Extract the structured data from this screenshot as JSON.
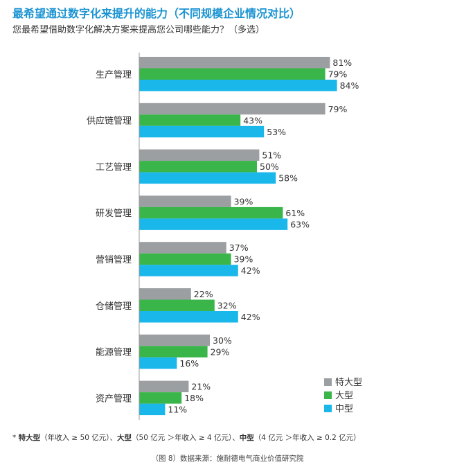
{
  "title": "最希望通过数字化来提升的能力（不同规模企业情况对比）",
  "subtitle": "您最希望借助数字化解决方案来提高您公司哪些能力？（多选）",
  "footnote": {
    "marker": "* ",
    "t1_name": "特大型",
    "t1_def": "（年收入 ≥ 50 亿元）、",
    "t2_name": "大型",
    "t2_def": "（50 亿元 ＞年收入 ≥ 4 亿元）、",
    "t3_name": "中型",
    "t3_def": "（4 亿元 ＞年收入 ≥ 0.2 亿元）"
  },
  "source": "（图 8）数据来源：施耐德电气商业价值研究院",
  "chart_data": {
    "type": "bar",
    "orientation": "horizontal",
    "value_suffix": "%",
    "categories": [
      "生产管理",
      "供应链管理",
      "工艺管理",
      "研发管理",
      "营销管理",
      "仓储管理",
      "能源管理",
      "资产管理"
    ],
    "series": [
      {
        "name": "特大型",
        "color": "#9b9fa2",
        "values": [
          81,
          79,
          51,
          39,
          37,
          22,
          30,
          21
        ]
      },
      {
        "name": "大型",
        "color": "#3ab54a",
        "values": [
          79,
          43,
          50,
          61,
          39,
          32,
          29,
          18
        ]
      },
      {
        "name": "中型",
        "color": "#1ab7ea",
        "values": [
          84,
          53,
          58,
          63,
          42,
          42,
          16,
          11
        ]
      }
    ],
    "xlim": [
      0,
      100
    ],
    "legend_position": "bottom-right",
    "grid": false
  }
}
